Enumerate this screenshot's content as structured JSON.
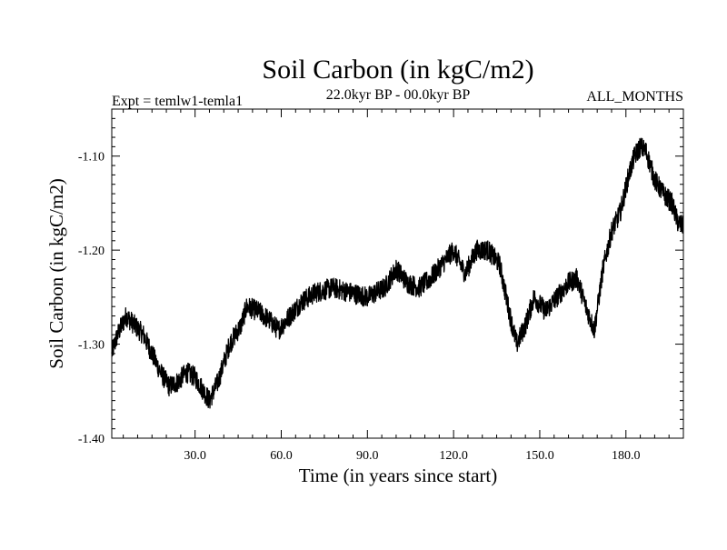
{
  "chart_data": {
    "type": "line",
    "title": "Soil Carbon (in kgC/m2)",
    "left_annotation": "Expt = temlw1-temla1",
    "center_annotation": "22.0kyr BP - 00.0kyr BP",
    "right_annotation": "ALL_MONTHS",
    "xlabel": "Time (in years since start)",
    "ylabel": "Soil Carbon (in kgC/m2)",
    "xlim": [
      1,
      200
    ],
    "ylim": [
      -1.4,
      -1.05
    ],
    "xticks": [
      30,
      60,
      90,
      120,
      150,
      180
    ],
    "xtick_labels": [
      "30.0",
      "60.0",
      "90.0",
      "120.0",
      "150.0",
      "180.0"
    ],
    "yticks": [
      -1.1,
      -1.2,
      -1.3,
      -1.4
    ],
    "ytick_labels": [
      "-1.10",
      "-1.20",
      "-1.30",
      "-1.40"
    ],
    "grid": false,
    "line_color": "#000000",
    "series": [
      {
        "name": "Soil Carbon",
        "x": [
          1,
          3,
          6,
          9,
          12,
          15,
          18,
          21,
          24,
          27,
          30,
          33,
          35,
          38,
          42,
          46,
          48,
          52,
          56,
          59,
          63,
          67,
          72,
          78,
          84,
          90,
          96,
          100,
          104,
          108,
          112,
          116,
          120,
          124,
          128,
          132,
          136,
          140,
          142,
          145,
          148,
          152,
          156,
          160,
          163,
          166,
          169,
          172,
          175,
          178,
          181,
          183,
          185,
          187,
          190,
          193,
          196,
          198,
          200
        ],
        "y": [
          -1.31,
          -1.29,
          -1.27,
          -1.28,
          -1.29,
          -1.31,
          -1.33,
          -1.345,
          -1.34,
          -1.33,
          -1.335,
          -1.35,
          -1.36,
          -1.34,
          -1.3,
          -1.28,
          -1.26,
          -1.265,
          -1.275,
          -1.285,
          -1.27,
          -1.255,
          -1.245,
          -1.24,
          -1.245,
          -1.25,
          -1.24,
          -1.22,
          -1.235,
          -1.24,
          -1.23,
          -1.215,
          -1.2,
          -1.225,
          -1.2,
          -1.2,
          -1.215,
          -1.275,
          -1.3,
          -1.28,
          -1.25,
          -1.265,
          -1.25,
          -1.235,
          -1.23,
          -1.26,
          -1.285,
          -1.22,
          -1.18,
          -1.16,
          -1.12,
          -1.1,
          -1.09,
          -1.095,
          -1.125,
          -1.14,
          -1.15,
          -1.17,
          -1.175
        ]
      }
    ]
  }
}
